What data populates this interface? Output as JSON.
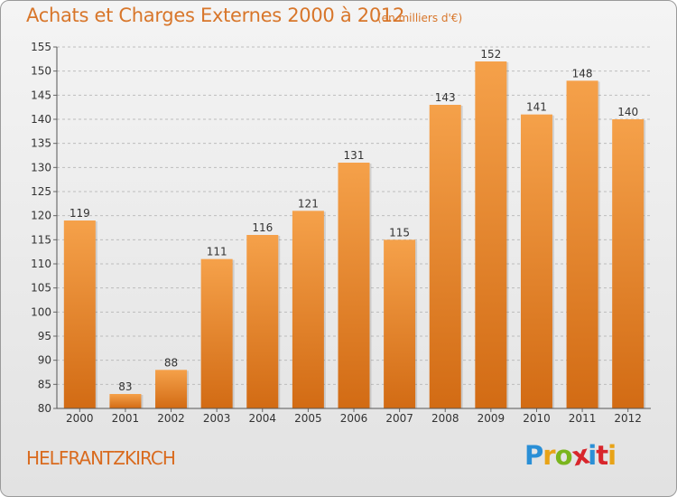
{
  "header": {
    "title": "Achats et Charges Externes 2000 à 2012",
    "subtitle": "(en milliers d'€)"
  },
  "footer": {
    "commune": "HELFRANTZKIRCH",
    "logo_letters": [
      "P",
      "r",
      "o",
      "x",
      "i",
      "t",
      "i"
    ],
    "logo_colors": [
      "#2a8fd6",
      "#e8a317",
      "#7ab51d",
      "#d8262c",
      "#2a8fd6",
      "#d8262c",
      "#e8a317"
    ]
  },
  "colors": {
    "bar_top": "#f5a14a",
    "bar_bottom": "#d26b14",
    "axis_text": "#333333",
    "grid": "#bdbdbd",
    "title": "#d8762a"
  },
  "chart_data": {
    "type": "bar",
    "categories": [
      "2000",
      "2001",
      "2002",
      "2003",
      "2004",
      "2005",
      "2006",
      "2007",
      "2008",
      "2009",
      "2010",
      "2011",
      "2012"
    ],
    "values": [
      119,
      83,
      88,
      111,
      116,
      121,
      131,
      115,
      143,
      152,
      141,
      148,
      140
    ],
    "ylim": [
      80,
      155
    ],
    "yticks": [
      "80",
      "85",
      "90",
      "95",
      "100",
      "105",
      "110",
      "115",
      "120",
      "125",
      "130",
      "135",
      "140",
      "145",
      "150",
      "155"
    ],
    "grid": true,
    "data_labels": true
  }
}
